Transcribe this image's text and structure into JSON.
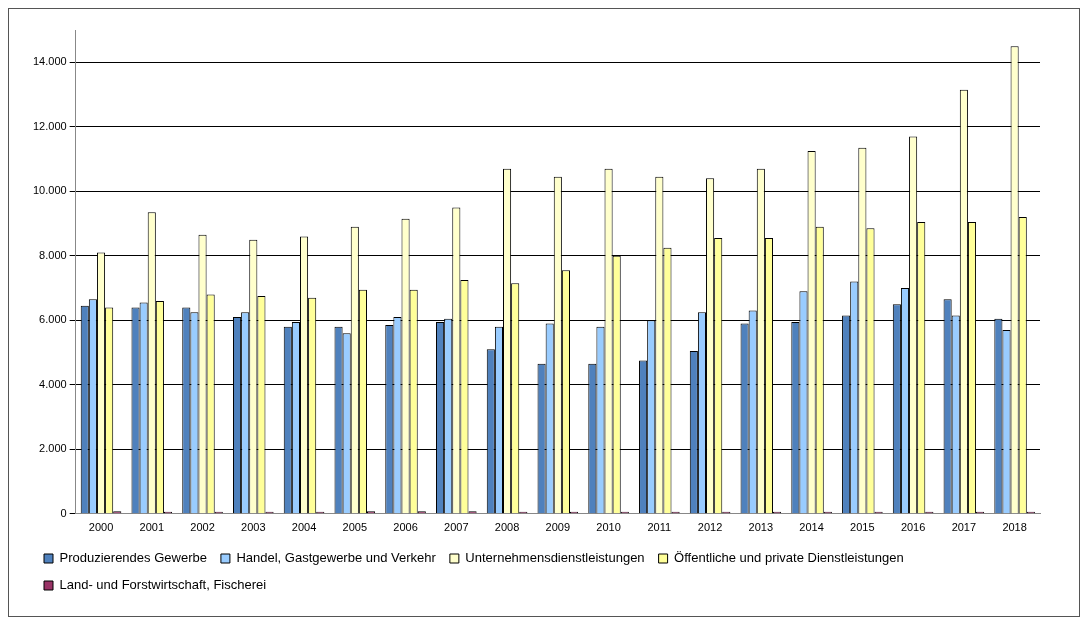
{
  "chart_data": {
    "type": "bar",
    "categories": [
      "2000",
      "2001",
      "2002",
      "2003",
      "2004",
      "2005",
      "2006",
      "2007",
      "2008",
      "2009",
      "2010",
      "2011",
      "2012",
      "2013",
      "2014",
      "2015",
      "2016",
      "2017",
      "2018"
    ],
    "series": [
      {
        "name": "Produzierendes Gewerbe",
        "color": "#4f81bd",
        "values": [
          6450,
          6400,
          6400,
          6100,
          5800,
          5800,
          5850,
          5950,
          5100,
          4650,
          4650,
          4750,
          5050,
          5900,
          5950,
          6150,
          6500,
          6650,
          6050
        ]
      },
      {
        "name": "Handel, Gastgewerbe und Verkehr",
        "color": "#99ccff",
        "values": [
          6650,
          6550,
          6250,
          6250,
          5950,
          5600,
          6100,
          6050,
          5800,
          5900,
          5800,
          6000,
          6250,
          6300,
          6900,
          7200,
          7000,
          6150,
          5700
        ]
      },
      {
        "name": "Unternehmensdienstleistungen",
        "color": "#ffffcc",
        "values": [
          8100,
          9350,
          8650,
          8500,
          8600,
          8900,
          9150,
          9500,
          10700,
          10450,
          10700,
          10450,
          10400,
          10700,
          11250,
          11350,
          11700,
          13150,
          14500
        ]
      },
      {
        "name": "Öffentliche und private Dienstleistungen",
        "color": "#ffff99",
        "values": [
          6400,
          6600,
          6800,
          6750,
          6700,
          6950,
          6950,
          7250,
          7150,
          7550,
          8000,
          8250,
          8550,
          8550,
          8900,
          8850,
          9050,
          9050,
          9200
        ]
      },
      {
        "name": "Land- und Forstwirtschaft, Fischerei",
        "color": "#993366",
        "values": [
          80,
          60,
          60,
          60,
          60,
          80,
          80,
          80,
          60,
          60,
          60,
          60,
          60,
          60,
          60,
          60,
          60,
          60,
          60
        ]
      }
    ],
    "ylim": [
      0,
      15000
    ],
    "yticks": [
      0,
      {
        "value": 2000,
        "label": "2.000"
      },
      {
        "value": 4000,
        "label": "4.000"
      },
      {
        "value": 6000,
        "label": "6.000"
      },
      {
        "value": 8000,
        "label": "8.000"
      },
      {
        "value": 10000,
        "label": "10.000"
      },
      {
        "value": 12000,
        "label": "12.000"
      },
      {
        "value": 14000,
        "label": "14.000"
      }
    ],
    "grid": "y",
    "legend": "bottom"
  }
}
